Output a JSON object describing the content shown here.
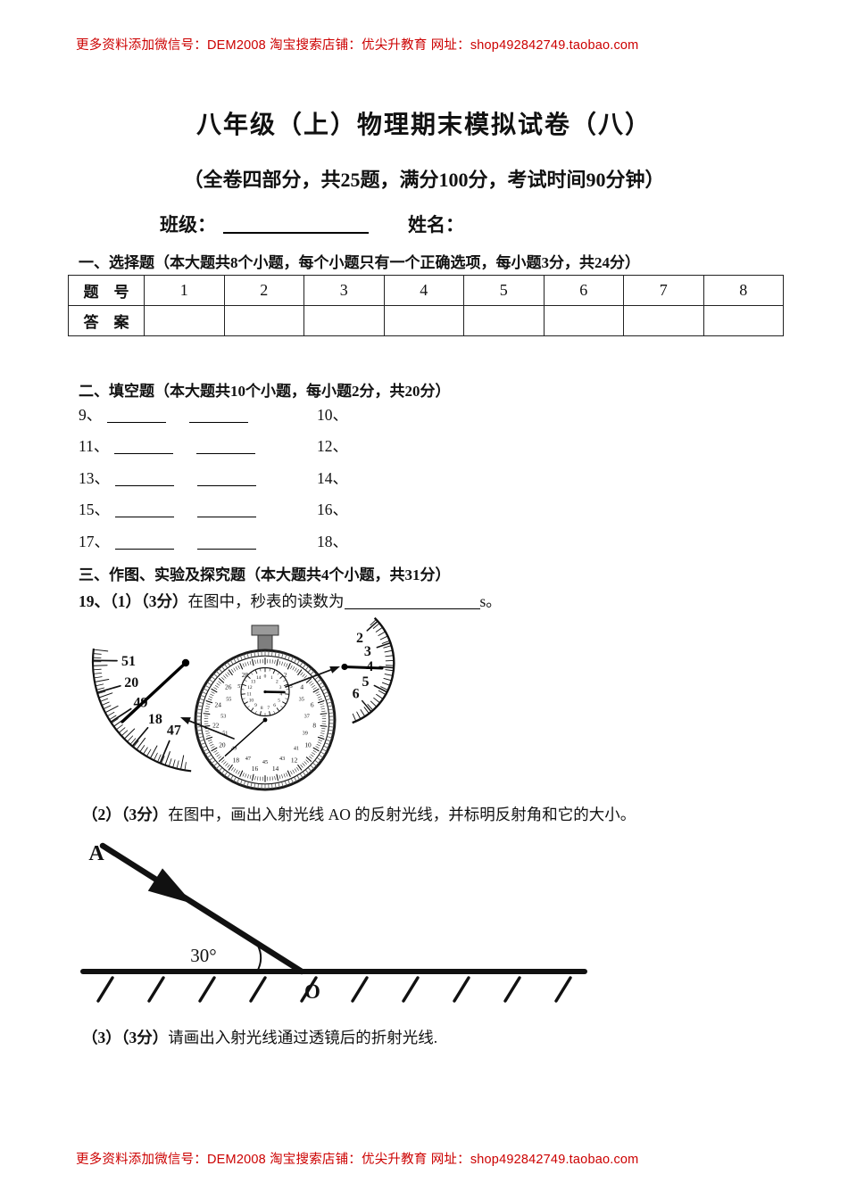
{
  "meta": {
    "header_note": "更多资料添加微信号：DEM2008  淘宝搜索店铺：优尖升教育  网址：shop492842749.taobao.com",
    "footer_note": "更多资料添加微信号：DEM2008  淘宝搜索店铺：优尖升教育  网址：shop492842749.taobao.com",
    "note_color": "#cc0000"
  },
  "title": "八年级（上）物理期末模拟试卷（八）",
  "subtitle": "（全卷四部分，共25题，满分100分，考试时间90分钟）",
  "student_info": {
    "class_label": "班级：",
    "name_label": "姓名："
  },
  "section_choice": {
    "heading": "一、选择题（本大题共8个小题，每个小题只有一个正确选项，每小题3分，共24分）",
    "table": {
      "question_row_header": "题　号",
      "answer_row_header": "答　案",
      "question_numbers": [
        "1",
        "2",
        "3",
        "4",
        "5",
        "6",
        "7",
        "8"
      ],
      "answers": [
        "",
        "",
        "",
        "",
        "",
        "",
        "",
        ""
      ]
    }
  },
  "section_blank": {
    "heading": "二、填空题（本大题共10个小题，每小题2分，共20分）",
    "rows": [
      {
        "left_no": "9、",
        "right_no": "10、"
      },
      {
        "left_no": "11、",
        "right_no": "12、"
      },
      {
        "left_no": "13、",
        "right_no": "14、"
      },
      {
        "left_no": "15、",
        "right_no": "16、"
      },
      {
        "left_no": "17、",
        "right_no": "18、"
      }
    ]
  },
  "section_draw": {
    "heading": "三、作图、实验及探究题（本大题共4个小题，共31分）",
    "q19_1": {
      "bold_prefix": "19、（1）（3分）",
      "text_before_blank": "在图中，秒表的读数为",
      "unit_after_blank": "s。"
    },
    "q19_2": {
      "bold_prefix": "（2）（3分）",
      "text": "在图中，画出入射光线 AO 的反射光线，并标明反射角和它的大小。"
    },
    "q19_3": {
      "bold_prefix": "（3）（3分）",
      "text": "请画出入射光线通过透镜后的折射光线."
    }
  },
  "stopwatch_figure": {
    "seconds_labels": [
      "0",
      "31",
      "2",
      "33",
      "4",
      "35",
      "6",
      "37",
      "8",
      "39",
      "10",
      "41",
      "12",
      "43",
      "14",
      "45",
      "16",
      "47",
      "18",
      "49",
      "20",
      "51",
      "22",
      "53",
      "24",
      "55",
      "26",
      "57",
      "28",
      "59"
    ],
    "minutes_labels": [
      "0",
      "1",
      "2",
      "3",
      "4",
      "5",
      "6",
      "7",
      "8",
      "9",
      "10",
      "11",
      "12",
      "13",
      "14"
    ],
    "left_magnifier_labels": [
      "51",
      "20",
      "49",
      "18",
      "47"
    ],
    "right_magnifier_labels": [
      "2",
      "3",
      "4",
      "5",
      "6"
    ],
    "second_hand_position_s": 19,
    "minute_hand_position_min": 3.8
  },
  "reflection_figure": {
    "incident_ray_label": "A",
    "angle_label": "30°",
    "vertex_label": "O"
  }
}
